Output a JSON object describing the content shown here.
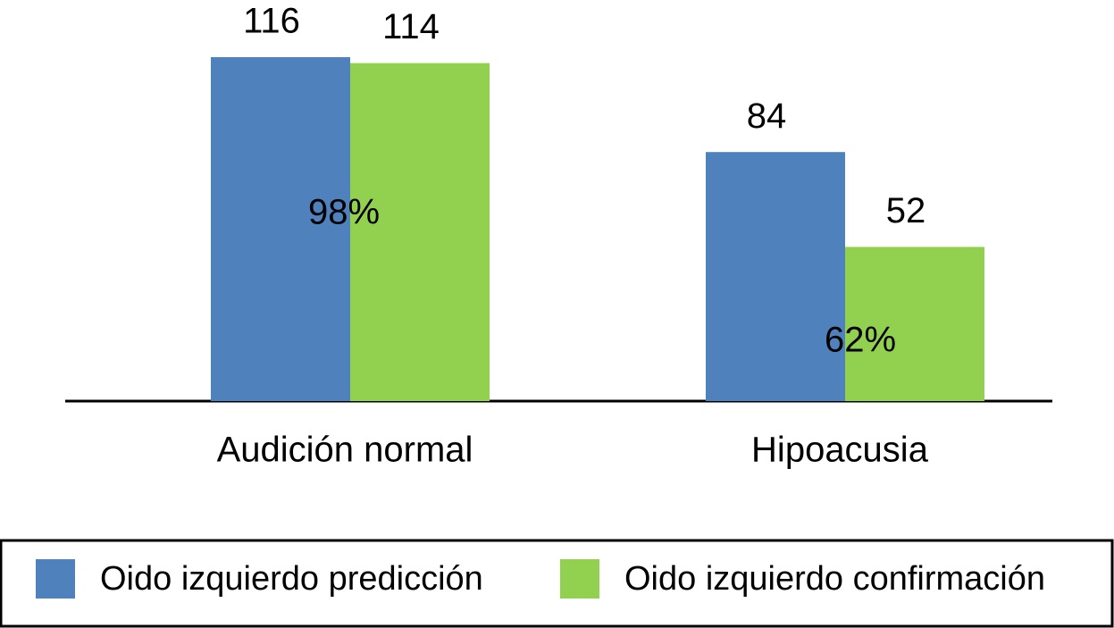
{
  "chart_data": {
    "type": "bar",
    "categories": [
      "Audición normal",
      "Hipoacusia"
    ],
    "series": [
      {
        "name": "Oido izquierdo predicción",
        "color": "#4f81bd",
        "values": [
          116,
          84
        ]
      },
      {
        "name": "Oido izquierdo confirmación",
        "color": "#92d050",
        "values": [
          114,
          52
        ]
      }
    ],
    "annotations": [
      "98%",
      "62%"
    ],
    "legend": "bottom"
  }
}
